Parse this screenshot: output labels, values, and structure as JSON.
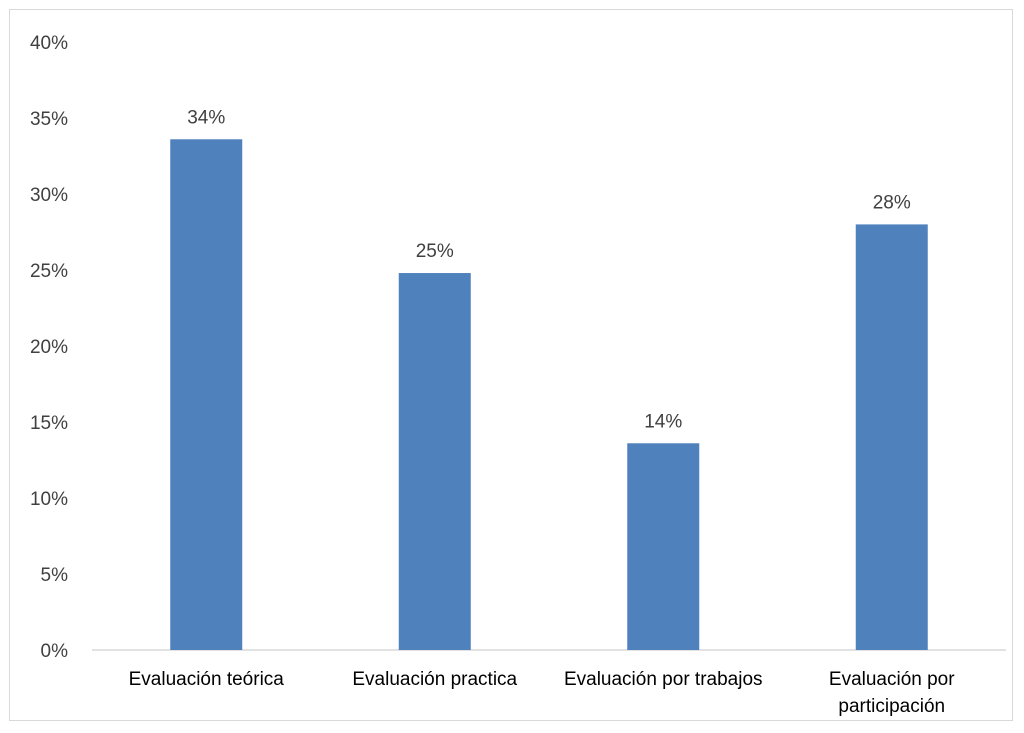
{
  "chart_data": {
    "type": "bar",
    "categories": [
      [
        "Evaluación teórica"
      ],
      [
        "Evaluación practica"
      ],
      [
        "Evaluación por trabajos"
      ],
      [
        "Evaluación por",
        "participación"
      ]
    ],
    "values": [
      33.6,
      24.8,
      13.6,
      28.0
    ],
    "data_labels": [
      "34%",
      "25%",
      "14%",
      "28%"
    ],
    "yticks": [
      "0%",
      "5%",
      "10%",
      "15%",
      "20%",
      "25%",
      "30%",
      "35%",
      "40%"
    ],
    "ylim": [
      0,
      40
    ],
    "grid": false,
    "legend": "none",
    "bar_color": "#4f81bd"
  }
}
